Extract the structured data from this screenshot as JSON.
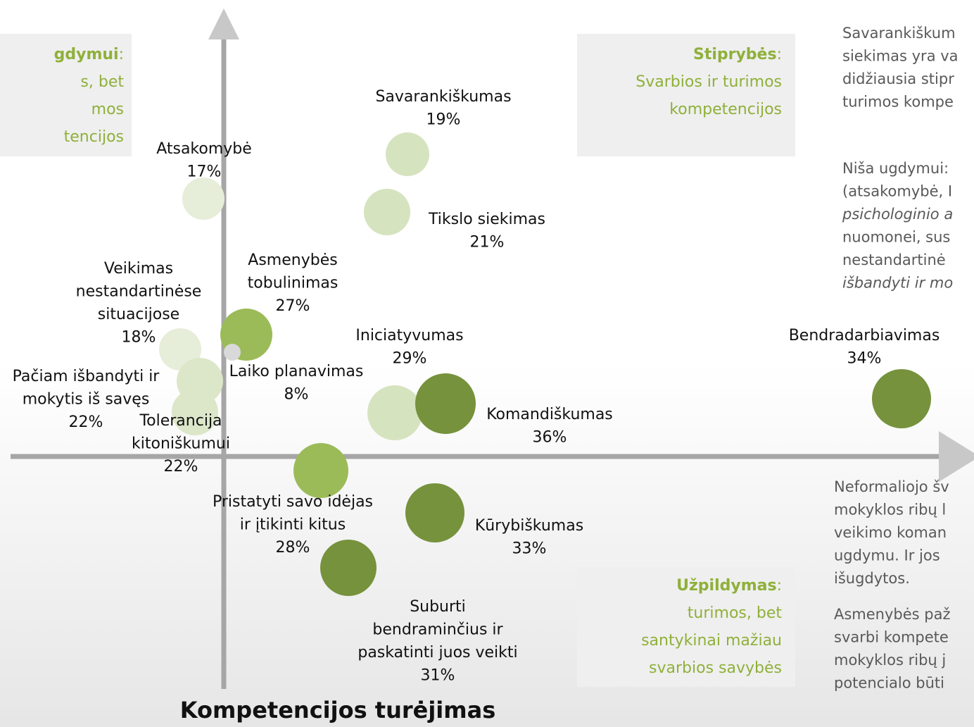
{
  "quadrants": {
    "top_left": {
      "title": "gdymui",
      "colon": ":",
      "lines": [
        "s, bet",
        "mos",
        "tencijos"
      ]
    },
    "top_right": {
      "title": "Stiprybės",
      "colon": ":",
      "lines": [
        "Svarbios ir turimos",
        "kompetencijos"
      ]
    },
    "bottom_right": {
      "title": "Užpildymas",
      "colon": ":",
      "lines": [
        "turimos, bet",
        "santykinai mažiau",
        "svarbios savybės"
      ]
    }
  },
  "bubbles": [
    {
      "lines": [
        "Savarankiškumas"
      ],
      "percent": "19%"
    },
    {
      "lines": [
        "Atsakomybė"
      ],
      "percent": "17%"
    },
    {
      "lines": [
        "Tikslo siekimas"
      ],
      "percent": "21%"
    },
    {
      "lines": [
        "Asmenybės",
        "tobulinimas"
      ],
      "percent": "27%"
    },
    {
      "lines": [
        "Veikimas",
        "nestandartinėse",
        "situacijose"
      ],
      "percent": "18%"
    },
    {
      "lines": [
        "Laiko planavimas"
      ],
      "percent": "8%"
    },
    {
      "lines": [
        "Pačiam išbandyti ir",
        "mokytis iš savęs"
      ],
      "percent": "22%"
    },
    {
      "lines": [
        "Tolerancija",
        "kitoniškumui"
      ],
      "percent": "22%"
    },
    {
      "lines": [
        "Iniciatyvumas"
      ],
      "percent": "29%"
    },
    {
      "lines": [
        "Komandiškumas"
      ],
      "percent": "36%"
    },
    {
      "lines": [
        "Bendradarbiavimas"
      ],
      "percent": "34%"
    },
    {
      "lines": [
        "Pristatyti savo idėjas",
        "ir įtikinti kitus"
      ],
      "percent": "28%"
    },
    {
      "lines": [
        "Kūrybiškumas"
      ],
      "percent": "33%"
    },
    {
      "lines": [
        "Suburti",
        "bendraminčius ir",
        "paskatinti juos veikti"
      ],
      "percent": "31%"
    }
  ],
  "axis_label": "Kompetencijos turėjimas",
  "side_text": {
    "top": [
      "Savarankiškum",
      "siekimas yra va",
      "didžiausia stipr",
      "turimos kompe"
    ],
    "middle": [
      "Niša ugdymui:",
      "(atsakomybė, I",
      "psichologinio a",
      "nuomonei, sus",
      "nestandartinė",
      "išbandyti ir mo"
    ],
    "bottom": [
      "Neformaliojo šv",
      "mokyklos ribų l",
      "veikimo koman",
      "ugdymu. Ir jos",
      "išugdytos."
    ],
    "last": [
      "Asmenybės paž",
      "svarbi kompete",
      "mokyklos ribų j",
      "potencialo būti"
    ]
  }
}
